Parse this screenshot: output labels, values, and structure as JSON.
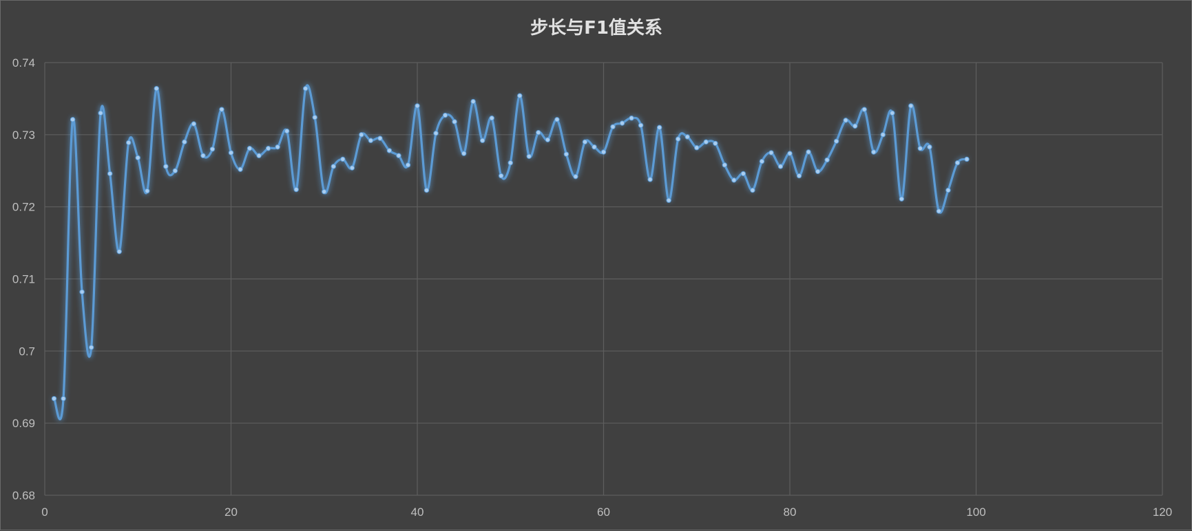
{
  "chart_data": {
    "type": "line",
    "title": "步长与F1值关系",
    "xlabel": "",
    "ylabel": "",
    "xlim": [
      0,
      120
    ],
    "ylim": [
      0.68,
      0.74
    ],
    "x_ticks": [
      0,
      20,
      40,
      60,
      80,
      100,
      120
    ],
    "y_ticks": [
      0.68,
      0.69,
      0.7,
      0.71,
      0.72,
      0.73,
      0.74
    ],
    "y_tick_labels": [
      "0.68",
      "0.69",
      "0.7",
      "0.71",
      "0.72",
      "0.73",
      "0.74"
    ],
    "grid": true,
    "smooth": true,
    "series": [
      {
        "color": "#5b9bd5",
        "x": [
          1,
          2,
          3,
          4,
          5,
          6,
          7,
          8,
          9,
          10,
          11,
          12,
          13,
          14,
          15,
          16,
          17,
          18,
          19,
          20,
          21,
          22,
          23,
          24,
          25,
          26,
          27,
          28,
          29,
          30,
          31,
          32,
          33,
          34,
          35,
          36,
          37,
          38,
          39,
          40,
          41,
          42,
          43,
          44,
          45,
          46,
          47,
          48,
          49,
          50,
          51,
          52,
          53,
          54,
          55,
          56,
          57,
          58,
          59,
          60,
          61,
          62,
          63,
          64,
          65,
          66,
          67,
          68,
          69,
          70,
          71,
          72,
          73,
          74,
          75,
          76,
          77,
          78,
          79,
          80,
          81,
          82,
          83,
          84,
          85,
          86,
          87,
          88,
          89,
          90,
          91,
          92,
          93,
          94,
          95,
          96,
          97,
          98,
          99
        ],
        "y": [
          0.6934,
          0.6934,
          0.7321,
          0.7082,
          0.7005,
          0.733,
          0.7246,
          0.7138,
          0.7289,
          0.7268,
          0.7222,
          0.7364,
          0.7256,
          0.725,
          0.729,
          0.7315,
          0.7271,
          0.728,
          0.7335,
          0.7275,
          0.7252,
          0.7281,
          0.7271,
          0.7281,
          0.7283,
          0.7305,
          0.7224,
          0.7364,
          0.7324,
          0.7221,
          0.7256,
          0.7266,
          0.7254,
          0.73,
          0.7292,
          0.7295,
          0.7278,
          0.7271,
          0.7258,
          0.734,
          0.7223,
          0.7302,
          0.7327,
          0.7318,
          0.7274,
          0.7346,
          0.7292,
          0.7323,
          0.7243,
          0.7261,
          0.7354,
          0.727,
          0.7303,
          0.7293,
          0.7321,
          0.7273,
          0.7242,
          0.729,
          0.7283,
          0.7276,
          0.7311,
          0.7316,
          0.7323,
          0.7313,
          0.7238,
          0.731,
          0.7209,
          0.7294,
          0.7297,
          0.7282,
          0.729,
          0.7288,
          0.7258,
          0.7237,
          0.7246,
          0.7223,
          0.7263,
          0.7275,
          0.7256,
          0.7274,
          0.7243,
          0.7276,
          0.7249,
          0.7265,
          0.7291,
          0.732,
          0.7312,
          0.7335,
          0.7276,
          0.73,
          0.733,
          0.7211,
          0.734,
          0.7281,
          0.7283,
          0.7194,
          0.7223,
          0.7261,
          0.7266
        ]
      }
    ]
  }
}
